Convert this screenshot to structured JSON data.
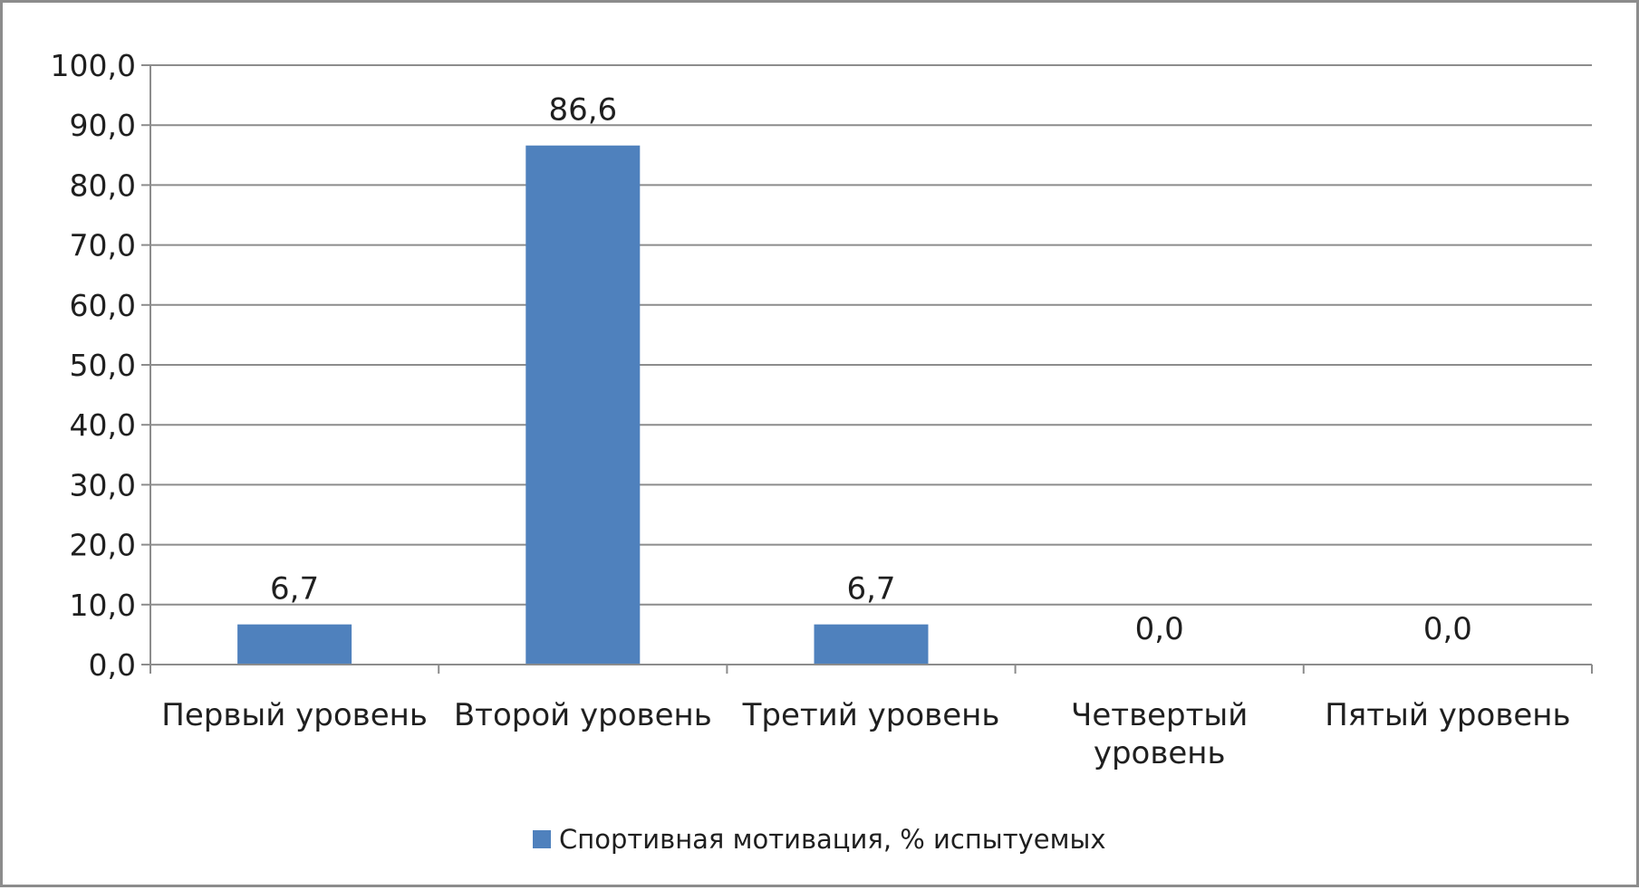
{
  "chart_data": {
    "type": "bar",
    "categories": [
      "Первый уровень",
      "Второй уровень",
      "Третий уровень",
      "Четвертый уровень",
      "Пятый уровень"
    ],
    "category_lines": [
      [
        "Первый уровень"
      ],
      [
        "Второй уровень"
      ],
      [
        "Третий уровень"
      ],
      [
        "Четвертый",
        "уровень"
      ],
      [
        "Пятый уровень"
      ]
    ],
    "series": [
      {
        "name": "Спортивная мотивация, % испытуемых",
        "values": [
          6.7,
          86.6,
          6.7,
          0.0,
          0.0
        ],
        "data_labels": [
          "6,7",
          "86,6",
          "6,7",
          "0,0",
          "0,0"
        ],
        "color": "#4f81bd"
      }
    ],
    "ylim": [
      0,
      100
    ],
    "y_ticks": [
      0,
      10,
      20,
      30,
      40,
      50,
      60,
      70,
      80,
      90,
      100
    ],
    "y_tick_labels": [
      "0,0",
      "10,0",
      "20,0",
      "30,0",
      "40,0",
      "50,0",
      "60,0",
      "70,0",
      "80,0",
      "90,0",
      "100,0"
    ],
    "grid": true,
    "gridline_color": "#8c8c8c",
    "axis_color": "#8c8c8c",
    "legend_position": "bottom"
  }
}
